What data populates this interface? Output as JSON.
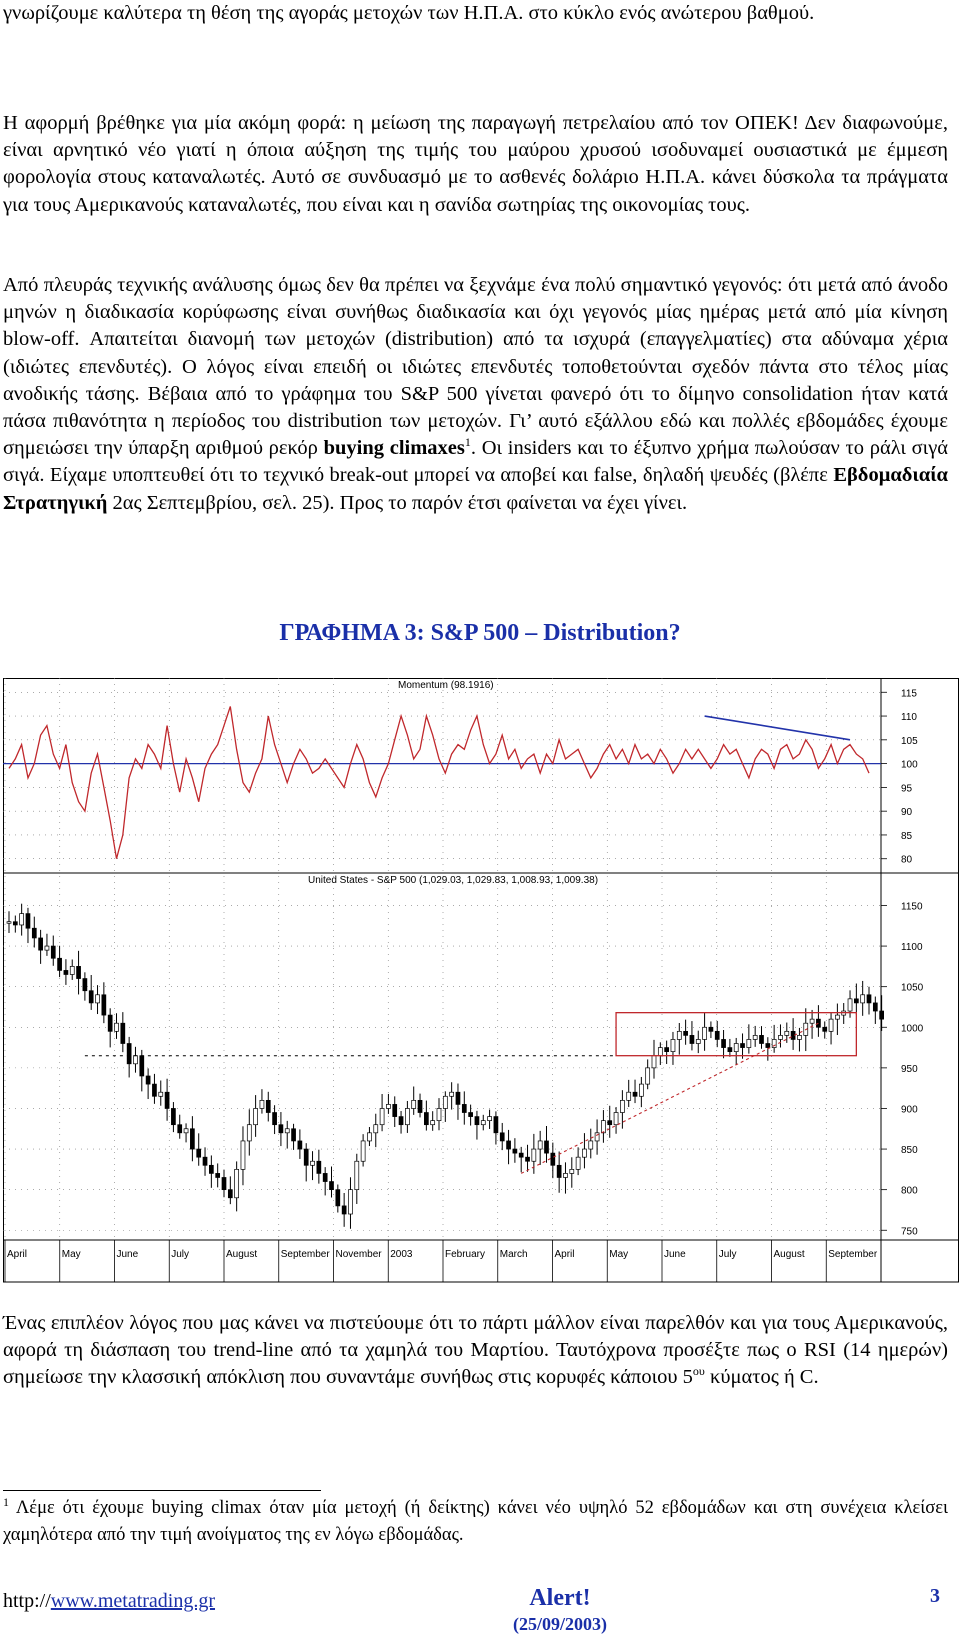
{
  "text": {
    "para0": "γνωρίζουμε καλύτερα τη θέση της αγοράς μετοχών των Η.Π.Α. στο κύκλο ενός ανώτερου βαθμού.",
    "para1": "Η αφορμή βρέθηκε για μία ακόμη φορά: η μείωση της παραγωγή πετρελαίου από τον ΟΠΕΚ! Δεν διαφωνούμε, είναι αρνητικό νέο γιατί η όποια αύξηση της τιμής του μαύρου χρυσού ισοδυναμεί ουσιαστικά με έμμεση φορολογία στους καταναλωτές. Αυτό σε συνδυασμό με το ασθενές δολάριο Η.Π.Α. κάνει δύσκολα τα πράγματα για τους Αμερικανούς καταναλωτές, που είναι και η σανίδα σωτηρίας της οικονομίας τους.",
    "para2_a": "Από πλευράς τεχνικής ανάλυσης όμως δεν θα πρέπει να ξεχνάμε ένα πολύ σημαντικό γεγονός: ότι μετά από άνοδο μηνών η διαδικασία κορύφωσης είναι συνήθως διαδικασία και όχι γεγονός μίας ημέρας μετά από μία κίνηση blow-off. Απαιτείται διανομή των μετοχών (distribution) από τα ισχυρά (επαγγελματίες) στα αδύναμα χέρια (ιδιώτες επενδυτές). Ο λόγος είναι επειδή οι ιδιώτες επενδυτές τοποθετούνται σχεδόν πάντα στο τέλος μίας ανοδικής τάσης. Βέβαια από το γράφημα του ",
    "para2_b": "S&P",
    "para2_c": " 500 γίνεται φανερό ότι το δίμηνο consolidation ήταν κατά πάσα πιθανότητα η περίοδος του distribution των μετοχών. Γι’ αυτό εξάλλου εδώ και πολλές εβδομάδες έχουμε σημειώσει την ύπαρξη αριθμού ρεκόρ ",
    "para2_bold": "buying climaxes",
    "para2_sup": "1",
    "para2_d": ". Οι insiders και το έξυπνο χρήμα πωλούσαν το ράλι σιγά σιγά. Είχαμε υποπτευθεί ότι το τεχνικό break-out μπορεί να αποβεί και false, δηλαδή ψευδές (βλέπε ",
    "para2_bold2": "Εβδομαδιαία Στρατηγική",
    "para2_e": " 2ας Σεπτεμβρίου, σελ. 25). Προς το παρόν έτσι φαίνεται να έχει γίνει.",
    "para3_a": "Ένας επιπλέον λόγος που μας κάνει να πιστεύουμε ότι το πάρτι μάλλον είναι παρελθόν και για τους Αμερικανούς, αφορά τη διάσπαση του trend-line από τα χαμηλά του Μαρτίου. Ταυτόχρονα προσέξτε πως ο RSI (14 ημερών) σημείωσε την κλασσική απόκλιση που συναντάμε συνήθως στις κορυφές κάποιου 5",
    "para3_sup": "ου",
    "para3_b": " κύματος ή C.",
    "footnote_num": "1",
    "footnote": " Λέμε ότι έχουμε buying climax όταν μία μετοχή (ή δείκτης) κάνει νέο υψηλό 52 εβδομάδων και στη συνέχεια κλείσει χαμηλότερα από την τιμή ανοίγματος της εν λόγω εβδομάδας."
  },
  "footer": {
    "url_prefix": "http://",
    "url_link": "www.metatrading.gr",
    "alert": "Alert!",
    "date": "(25/09/2003)",
    "page": "3"
  },
  "colors": {
    "title": "#1a2fa8",
    "momentum_line": "#c0282c",
    "reference_line": "#2233aa",
    "range_box": "#c0282c",
    "trend_line": "#c0282c"
  },
  "chart_data": {
    "type": "line",
    "title": "ΓΡΑΦΗΜΑ 3: S&P 500 – Distribution?",
    "grid": true,
    "x_labels": [
      "April",
      "May",
      "June",
      "July",
      "August",
      "September",
      "November",
      "2003",
      "February",
      "March",
      "April",
      "May",
      "June",
      "July",
      "August",
      "September"
    ],
    "panels": [
      {
        "name": "Momentum (98.1916)",
        "kind": "line",
        "ylim": [
          77,
          118
        ],
        "yticks": [
          115,
          110,
          105,
          100,
          95,
          90,
          85,
          80
        ],
        "reference_level": 100,
        "values": [
          99,
          101,
          104,
          97,
          100,
          106,
          108,
          102,
          99,
          104,
          96,
          92,
          90,
          98,
          102,
          95,
          88,
          80,
          85,
          97,
          101,
          99,
          104,
          102,
          99,
          108,
          100,
          94,
          101,
          97,
          92,
          99,
          102,
          104,
          108,
          112,
          103,
          96,
          94,
          98,
          101,
          110,
          104,
          100,
          96,
          100,
          103,
          101,
          98,
          99,
          101,
          99,
          97,
          95,
          100,
          104,
          101,
          96,
          93,
          97,
          100,
          105,
          110,
          106,
          101,
          103,
          110,
          106,
          101,
          98,
          102,
          104,
          103,
          107,
          110,
          104,
          100,
          102,
          106,
          101,
          103,
          99,
          101,
          102,
          98,
          102,
          100,
          105,
          101,
          102,
          103,
          100,
          97,
          99,
          102,
          104,
          101,
          103,
          100,
          104,
          101,
          102,
          100,
          103,
          101,
          98,
          100,
          103,
          101,
          103,
          101,
          99,
          101,
          104,
          102,
          103,
          100,
          97,
          101,
          103,
          102,
          99,
          103,
          104,
          101,
          102,
          105,
          103,
          99,
          101,
          104,
          100,
          103,
          104,
          102,
          101,
          98
        ]
      },
      {
        "name": "United States - S&P 500 (1,029.03, 1,029.83, 1,008.93, 1,009.38)",
        "kind": "bars",
        "ylim": [
          738,
          1190
        ],
        "yticks": [
          1150,
          1100,
          1050,
          1000,
          950,
          900,
          850,
          800,
          750
        ],
        "values": [
          1130,
          1126,
          1140,
          1122,
          1110,
          1095,
          1100,
          1085,
          1070,
          1065,
          1075,
          1060,
          1045,
          1030,
          1040,
          1015,
          995,
          1005,
          980,
          955,
          965,
          940,
          930,
          915,
          920,
          900,
          880,
          870,
          875,
          850,
          840,
          830,
          820,
          815,
          800,
          790,
          825,
          860,
          880,
          900,
          910,
          895,
          880,
          870,
          875,
          860,
          850,
          830,
          835,
          820,
          810,
          800,
          780,
          770,
          800,
          835,
          860,
          870,
          880,
          900,
          905,
          890,
          880,
          900,
          910,
          895,
          880,
          885,
          900,
          915,
          920,
          905,
          895,
          890,
          880,
          885,
          890,
          870,
          860,
          850,
          845,
          840,
          835,
          850,
          860,
          845,
          830,
          815,
          820,
          825,
          840,
          850,
          860,
          870,
          885,
          880,
          895,
          910,
          920,
          915,
          930,
          950,
          965,
          975,
          970,
          985,
          995,
          990,
          980,
          985,
          1000,
          995,
          985,
          975,
          970,
          980,
          975,
          985,
          990,
          980,
          975,
          985,
          990,
          995,
          985,
          990,
          1005,
          1010,
          1000,
          995,
          1010,
          1015,
          1020,
          1035,
          1030,
          1040,
          1030,
          1020,
          1010
        ]
      }
    ],
    "annotations": [
      {
        "type": "range_box",
        "from_index": 96,
        "to_index": 134,
        "low": 965,
        "high": 1018
      },
      {
        "type": "trend_line",
        "from_index": 81,
        "low_start": 820,
        "to_index": 128,
        "high_end": 1005
      },
      {
        "type": "divergence_line",
        "panel": 0,
        "from_index": 110,
        "to_index": 133,
        "from_value": 110,
        "to_value": 105
      }
    ]
  }
}
